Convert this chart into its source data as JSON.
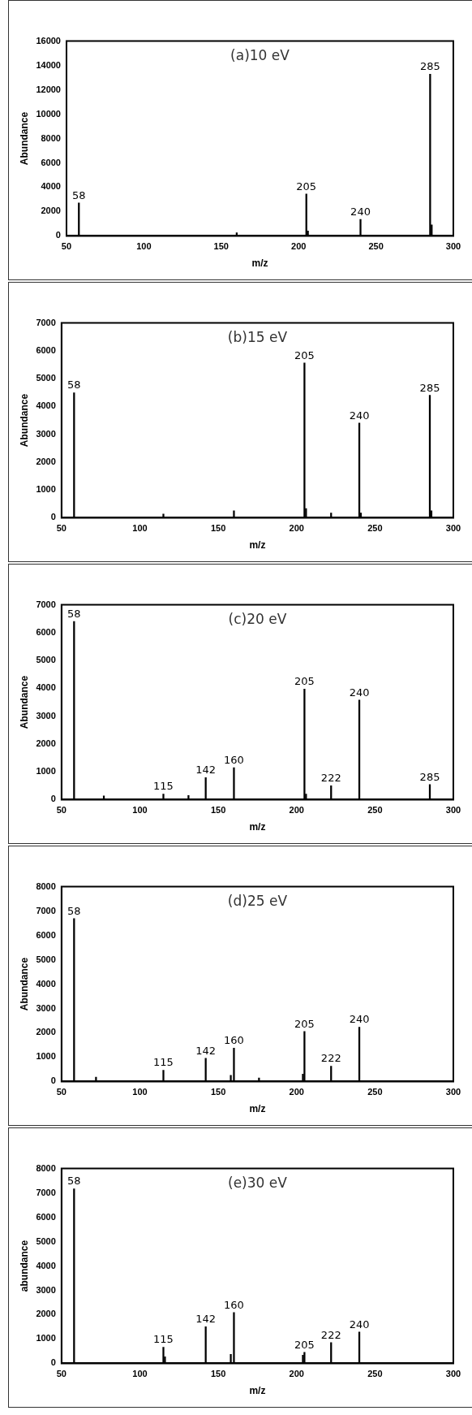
{
  "chart_data": [
    {
      "type": "bar",
      "title": "(a)10 eV",
      "xlabel": "m/z",
      "ylabel": "Abundance",
      "color": "#000000",
      "x": [
        58,
        160,
        205,
        206,
        240,
        285,
        286
      ],
      "values": [
        2700,
        250,
        3440,
        400,
        1360,
        13290,
        900
      ],
      "xlim": [
        50,
        300
      ],
      "xticks": [
        50,
        100,
        150,
        200,
        250,
        300
      ],
      "ylim": [
        0,
        16000
      ],
      "yticks": [
        0,
        2000,
        4000,
        6000,
        8000,
        10000,
        12000,
        14000,
        16000
      ],
      "annotations": [
        {
          "text": "58",
          "x": 58,
          "y": 2700
        },
        {
          "text": "205",
          "x": 205,
          "y": 3440
        },
        {
          "text": "240",
          "x": 240,
          "y": 1360
        },
        {
          "text": "285",
          "x": 285,
          "y": 13290
        }
      ]
    },
    {
      "type": "bar",
      "title": "(b)15 eV",
      "xlabel": "m/z",
      "ylabel": "Abundance",
      "color": "#000000",
      "x": [
        58,
        115,
        160,
        205,
        206,
        222,
        240,
        241,
        285,
        286
      ],
      "values": [
        4490,
        130,
        250,
        5560,
        330,
        170,
        3400,
        170,
        4400,
        250
      ],
      "xlim": [
        50,
        300
      ],
      "xticks": [
        50,
        100,
        150,
        200,
        250,
        300
      ],
      "ylim": [
        0,
        7000
      ],
      "yticks": [
        0,
        1000,
        2000,
        3000,
        4000,
        5000,
        6000,
        7000
      ],
      "annotations": [
        {
          "text": "58",
          "x": 58,
          "y": 4490
        },
        {
          "text": "205",
          "x": 205,
          "y": 5560
        },
        {
          "text": "240",
          "x": 240,
          "y": 3400
        },
        {
          "text": "285",
          "x": 285,
          "y": 4400
        }
      ]
    },
    {
      "type": "bar",
      "title": "(c)20 eV",
      "xlabel": "m/z",
      "ylabel": "Abundance",
      "color": "#000000",
      "x": [
        58,
        77,
        115,
        131,
        142,
        160,
        205,
        206,
        222,
        240,
        285
      ],
      "values": [
        6400,
        130,
        200,
        150,
        790,
        1150,
        3970,
        200,
        500,
        3580,
        540
      ],
      "xlim": [
        50,
        300
      ],
      "xticks": [
        50,
        100,
        150,
        200,
        250,
        300
      ],
      "ylim": [
        0,
        7000
      ],
      "yticks": [
        0,
        1000,
        2000,
        3000,
        4000,
        5000,
        6000,
        7000
      ],
      "annotations": [
        {
          "text": "58",
          "x": 58,
          "y": 6400
        },
        {
          "text": "115",
          "x": 115,
          "y": 200
        },
        {
          "text": "142",
          "x": 142,
          "y": 790
        },
        {
          "text": "160",
          "x": 160,
          "y": 1150
        },
        {
          "text": "205",
          "x": 205,
          "y": 3970
        },
        {
          "text": "222",
          "x": 222,
          "y": 500
        },
        {
          "text": "240",
          "x": 240,
          "y": 3580
        },
        {
          "text": "285",
          "x": 285,
          "y": 540
        }
      ]
    },
    {
      "type": "bar",
      "title": "(d)25 eV",
      "xlabel": "m/z",
      "ylabel": "Abundance",
      "color": "#000000",
      "x": [
        58,
        72,
        115,
        142,
        158,
        160,
        176,
        204,
        205,
        222,
        240
      ],
      "values": [
        6690,
        180,
        460,
        950,
        250,
        1370,
        140,
        300,
        2050,
        630,
        2230
      ],
      "xlim": [
        50,
        300
      ],
      "xticks": [
        50,
        100,
        150,
        200,
        250,
        300
      ],
      "ylim": [
        0,
        8000
      ],
      "yticks": [
        0,
        1000,
        2000,
        3000,
        4000,
        5000,
        6000,
        7000,
        8000
      ],
      "annotations": [
        {
          "text": "58",
          "x": 58,
          "y": 6690
        },
        {
          "text": "115",
          "x": 115,
          "y": 460
        },
        {
          "text": "142",
          "x": 142,
          "y": 950
        },
        {
          "text": "160",
          "x": 160,
          "y": 1370
        },
        {
          "text": "205",
          "x": 205,
          "y": 2050
        },
        {
          "text": "222",
          "x": 222,
          "y": 630
        },
        {
          "text": "240",
          "x": 240,
          "y": 2230
        }
      ]
    },
    {
      "type": "bar",
      "title": "(e)30 eV",
      "xlabel": "m/z",
      "ylabel": "abundance",
      "color": "#000000",
      "x": [
        58,
        115,
        116,
        142,
        158,
        160,
        204,
        205,
        222,
        240
      ],
      "values": [
        7170,
        660,
        270,
        1500,
        370,
        2090,
        340,
        450,
        850,
        1290
      ],
      "xlim": [
        50,
        300
      ],
      "xticks": [
        50,
        100,
        150,
        200,
        250,
        300
      ],
      "ylim": [
        0,
        8000
      ],
      "yticks": [
        0,
        1000,
        2000,
        3000,
        4000,
        5000,
        6000,
        7000,
        8000
      ],
      "annotations": [
        {
          "text": "58",
          "x": 58,
          "y": 7170
        },
        {
          "text": "115",
          "x": 115,
          "y": 660
        },
        {
          "text": "142",
          "x": 142,
          "y": 1500
        },
        {
          "text": "160",
          "x": 160,
          "y": 2090
        },
        {
          "text": "205",
          "x": 205,
          "y": 450
        },
        {
          "text": "222",
          "x": 222,
          "y": 850
        },
        {
          "text": "240",
          "x": 240,
          "y": 1290
        }
      ]
    }
  ]
}
